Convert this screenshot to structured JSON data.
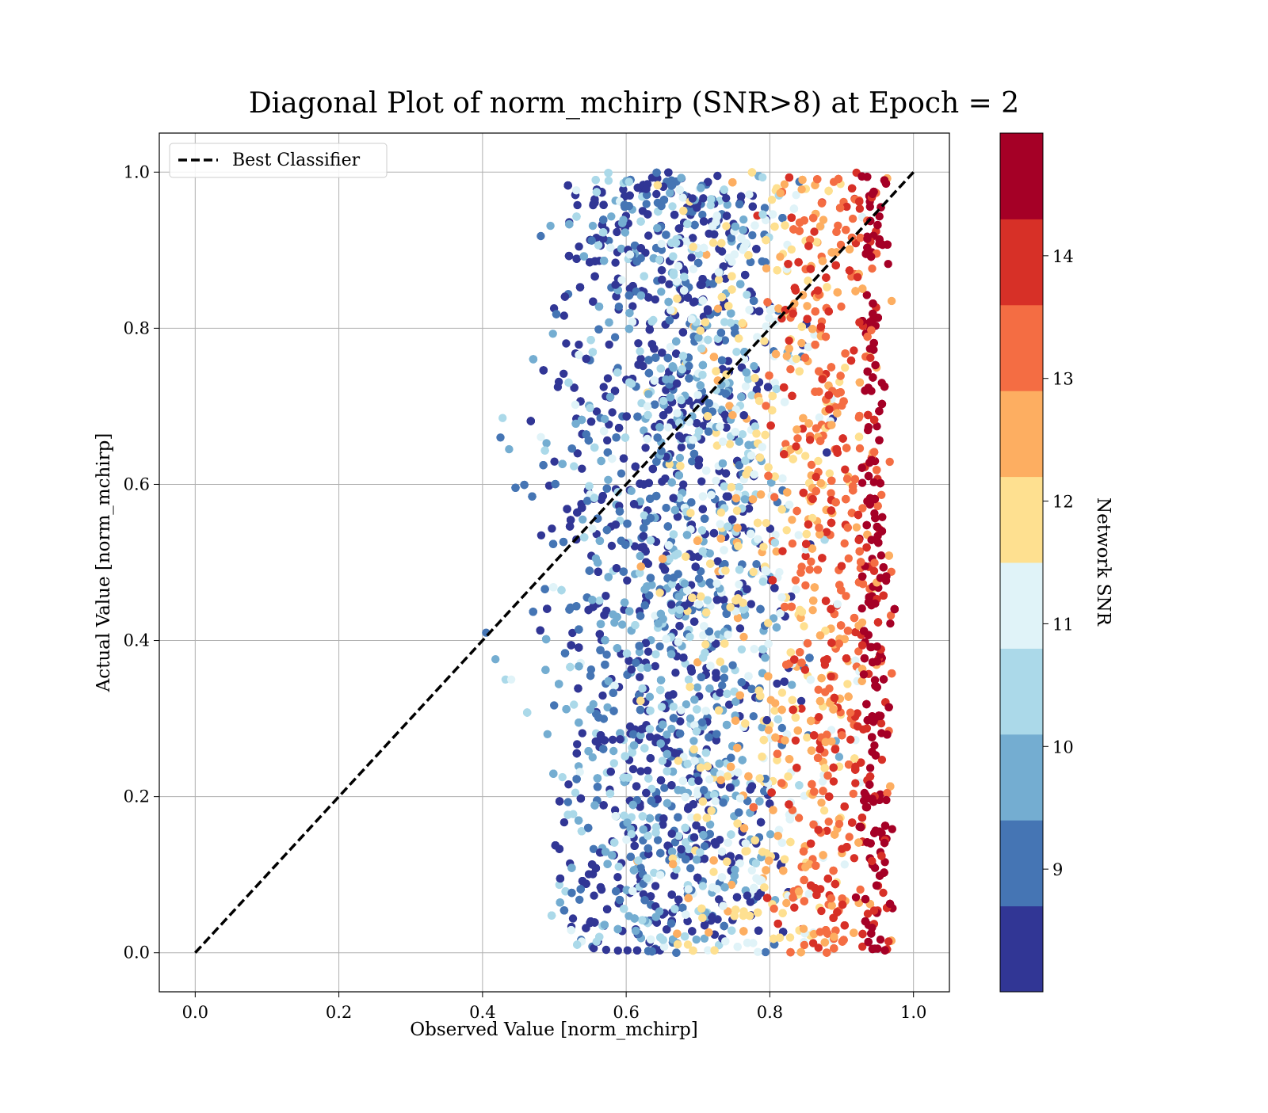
{
  "chart_data": {
    "type": "scatter",
    "title": "Diagonal Plot of norm_mchirp (SNR>8) at Epoch = 2",
    "xlabel": "Observed Value [norm_mchirp]",
    "ylabel": "Actual Value [norm_mchirp]",
    "xlim": [
      -0.05,
      1.05
    ],
    "ylim": [
      -0.05,
      1.05
    ],
    "xticks": [
      "0.0",
      "0.2",
      "0.4",
      "0.6",
      "0.8",
      "1.0"
    ],
    "yticks": [
      "0.0",
      "0.2",
      "0.4",
      "0.6",
      "0.8",
      "1.0"
    ],
    "grid": true,
    "legend": {
      "placement": "upper-left",
      "entries": [
        "Best Classifier"
      ]
    },
    "reference_line": {
      "name": "Best Classifier",
      "style": "dashed",
      "color": "#000000",
      "x": [
        0.0,
        1.0
      ],
      "y": [
        0.0,
        1.0
      ]
    },
    "colorbar": {
      "label": "Network SNR",
      "range": [
        8,
        15
      ],
      "ticks": [
        "9",
        "10",
        "11",
        "12",
        "13",
        "14"
      ],
      "levels": 10,
      "colors": [
        "#313695",
        "#4575b4",
        "#74add1",
        "#abd9e9",
        "#e0f3f8",
        "#fee090",
        "#fdae61",
        "#f46d43",
        "#d73027",
        "#a50026"
      ]
    },
    "points_description_range": {
      "x_observed_range": [
        0.4,
        0.98
      ],
      "y_actual_range": [
        0.0,
        1.0
      ]
    }
  }
}
